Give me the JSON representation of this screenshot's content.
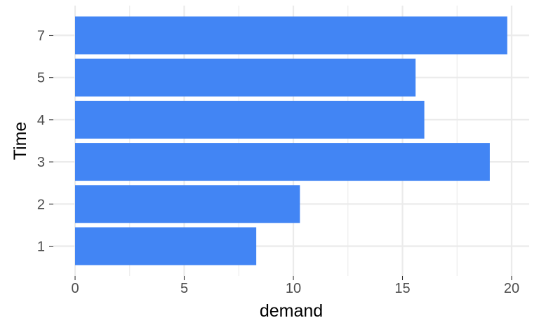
{
  "chart_data": {
    "type": "bar",
    "orientation": "horizontal",
    "categories": [
      "1",
      "2",
      "3",
      "4",
      "5",
      "7"
    ],
    "values": [
      8.3,
      10.3,
      19.0,
      16.0,
      15.6,
      19.8
    ],
    "xlabel": "demand",
    "ylabel": "Time",
    "xlim": [
      0,
      20
    ],
    "x_ticks": [
      0,
      5,
      10,
      15,
      20
    ],
    "x_tick_labels": [
      "0",
      "5",
      "10",
      "15",
      "20"
    ],
    "grid": true,
    "bar_color": "#4285F4",
    "grid_color": "#EBEBEB"
  }
}
